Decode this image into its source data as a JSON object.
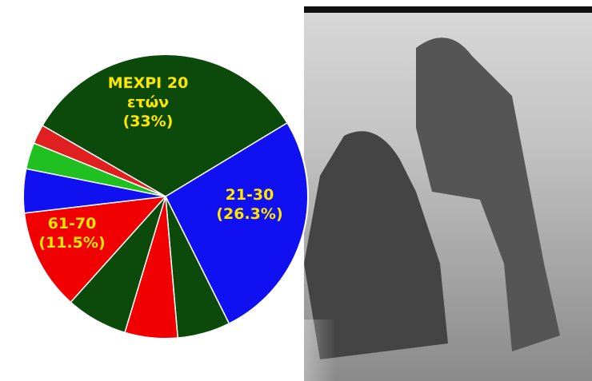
{
  "chart_data": {
    "type": "pie",
    "categories": [
      "ΜΕΧΡΙ 20 ετών",
      "21-30",
      null,
      null,
      null,
      "61-70",
      null,
      null,
      null
    ],
    "values": [
      33,
      26.3,
      6,
      6,
      7,
      11.5,
      5,
      3,
      2.2
    ],
    "value_labels": [
      "(33%)",
      "(26.3%)",
      null,
      null,
      null,
      "(11.5%)",
      null,
      null,
      null
    ],
    "colors": [
      "#0b4a0b",
      "#1010f0",
      "#0b4a0b",
      "#f00000",
      "#0b4a0b",
      "#f00000",
      "#1010f0",
      "#20c020",
      "#e02020"
    ]
  }
}
